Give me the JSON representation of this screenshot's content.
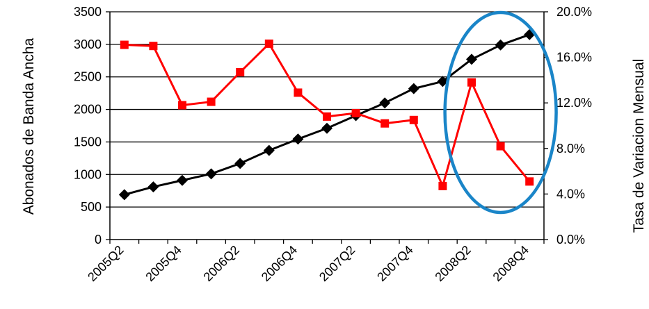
{
  "chart_data": {
    "type": "line",
    "ylabel": "Abonados de Banda Ancha",
    "y2label": "Tasa de Variacion Mensual",
    "x": [
      "2005Q2",
      "2005Q3",
      "2005Q4",
      "2006Q1",
      "2006Q2",
      "2006Q3",
      "2006Q4",
      "2007Q1",
      "2007Q2",
      "2007Q3",
      "2007Q4",
      "2008Q1",
      "2008Q2",
      "2008Q3",
      "2008Q4"
    ],
    "x_tick_labels": [
      "2005Q2",
      "2005Q4",
      "2006Q2",
      "2006Q4",
      "2007Q2",
      "2007Q4",
      "2008Q2",
      "2008Q4"
    ],
    "ylim": [
      0,
      3500
    ],
    "y_ticks": [
      0,
      500,
      1000,
      1500,
      2000,
      2500,
      3000,
      3500
    ],
    "y_tick_labels": [
      "0",
      "500",
      "1000",
      "1500",
      "2000",
      "2500",
      "3000",
      "3500"
    ],
    "y2lim": [
      0,
      20
    ],
    "y2_ticks": [
      0,
      4,
      8,
      12,
      16,
      20
    ],
    "y2_tick_labels": [
      "0.0%",
      "4.0%",
      "8.0%",
      "12.0%",
      "16.0%",
      "20.0%"
    ],
    "grid": true,
    "series": [
      {
        "axis": "left",
        "color": "#000000",
        "marker": "diamond",
        "values": [
          690,
          810,
          910,
          1010,
          1170,
          1370,
          1545,
          1710,
          1905,
          2100,
          2320,
          2430,
          2770,
          2990,
          3150
        ]
      },
      {
        "axis": "right",
        "color": "#ff0000",
        "marker": "square",
        "values": [
          17.1,
          17.0,
          11.8,
          12.1,
          14.7,
          17.2,
          12.9,
          10.8,
          11.1,
          10.2,
          10.5,
          4.7,
          13.8,
          8.2,
          5.1
        ]
      }
    ],
    "annotations": [
      {
        "type": "ellipse",
        "color": "#1a85c8",
        "around": [
          "2008Q2",
          "2008Q4"
        ]
      }
    ]
  }
}
